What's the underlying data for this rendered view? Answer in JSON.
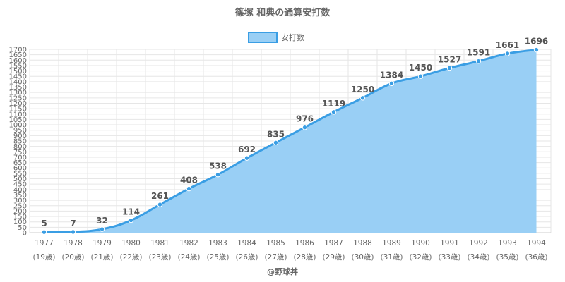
{
  "chart_data": {
    "type": "area",
    "title": "篠塚 和典の通算安打数",
    "legend": {
      "label": "安打数",
      "position": "top"
    },
    "categories": [
      "1977",
      "1978",
      "1979",
      "1980",
      "1981",
      "1982",
      "1983",
      "1984",
      "1985",
      "1986",
      "1987",
      "1988",
      "1989",
      "1990",
      "1991",
      "1992",
      "1993",
      "1994"
    ],
    "sublabels": [
      "(19歳)",
      "(20歳)",
      "(21歳)",
      "(22歳)",
      "(23歳)",
      "(24歳)",
      "(25歳)",
      "(26歳)",
      "(27歳)",
      "(28歳)",
      "(29歳)",
      "(30歳)",
      "(31歳)",
      "(32歳)",
      "(33歳)",
      "(34歳)",
      "(35歳)",
      "(36歳)"
    ],
    "series": [
      {
        "name": "安打数",
        "values": [
          5,
          7,
          32,
          114,
          261,
          408,
          538,
          692,
          835,
          976,
          1119,
          1250,
          1384,
          1450,
          1527,
          1591,
          1661,
          1696
        ]
      }
    ],
    "ylim": [
      0,
      1700
    ],
    "ytick_step": 50,
    "grid": true,
    "colors": {
      "line": "#3a9ee4",
      "fill": "#99cff5",
      "grid": "#e6e6e6"
    },
    "credit": "@野球丼"
  }
}
